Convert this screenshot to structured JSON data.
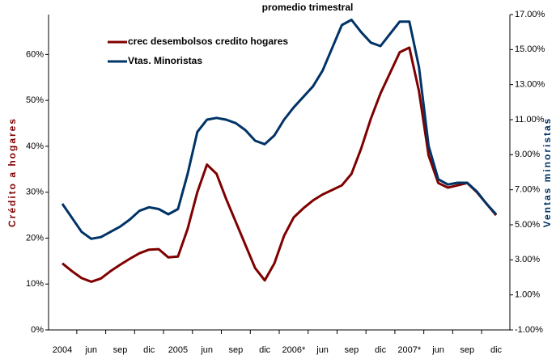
{
  "chart_data": {
    "type": "line",
    "subtitle": "promedio trimestral",
    "ylabel": "Crédito a hogares",
    "y2label": "Ventas minoristas",
    "categories": [
      "2004",
      null,
      null,
      "jun",
      null,
      null,
      "sep",
      null,
      null,
      "dic",
      null,
      null,
      "2005",
      null,
      null,
      "jun",
      null,
      null,
      "sep",
      null,
      null,
      "dic",
      null,
      null,
      "2006*",
      null,
      null,
      "jun",
      null,
      null,
      "sep",
      null,
      null,
      "dic",
      null,
      null,
      "2007*",
      null,
      null,
      "jun",
      null,
      null,
      "sep",
      null,
      null,
      "dic"
    ],
    "series": [
      {
        "name": "crec desembolsos credito hogares",
        "color": "#800000",
        "values": [
          14.5,
          12.8,
          11.3,
          10.5,
          11.2,
          12.8,
          14.2,
          15.5,
          16.7,
          17.5,
          17.6,
          15.8,
          16,
          22,
          30,
          36,
          34,
          28.5,
          23.5,
          18.5,
          13.5,
          10.8,
          14.5,
          20.5,
          24.5,
          26.5,
          28.2,
          29.5,
          30.5,
          31.5,
          34,
          39.5,
          46,
          51.5,
          56,
          60.5,
          61.5,
          52,
          38,
          32,
          31,
          31.5,
          32,
          30,
          27.5,
          25
        ]
      },
      {
        "name": "Vtas. Minoristas",
        "color": "#003366",
        "axis": "y2",
        "values": [
          6.2,
          5.4,
          4.6,
          4.2,
          4.3,
          4.6,
          4.9,
          5.3,
          5.8,
          6.0,
          5.9,
          5.6,
          5.9,
          7.9,
          10.3,
          11.0,
          11.1,
          11.0,
          10.8,
          10.4,
          9.8,
          9.6,
          10.1,
          11.0,
          11.7,
          12.3,
          12.9,
          13.8,
          15.1,
          16.4,
          16.7,
          16.0,
          15.4,
          15.2,
          15.9,
          16.6,
          16.6,
          14.0,
          9.5,
          7.6,
          7.3,
          7.4,
          7.4,
          6.9,
          6.2,
          5.6
        ]
      }
    ],
    "ylim": [
      0,
      68.7
    ],
    "yticks": [
      {
        "value": 0,
        "label": "0%"
      },
      {
        "value": 10,
        "label": "10%"
      },
      {
        "value": 20,
        "label": "20%"
      },
      {
        "value": 30,
        "label": "30%"
      },
      {
        "value": 40,
        "label": "40%"
      },
      {
        "value": 50,
        "label": "50%"
      },
      {
        "value": 60,
        "label": "60%"
      }
    ],
    "y2lim": [
      -1,
      17
    ],
    "y2ticks": [
      {
        "value": -1,
        "label": "-1.00%"
      },
      {
        "value": 1,
        "label": "1.00%"
      },
      {
        "value": 3,
        "label": "3.00%"
      },
      {
        "value": 5,
        "label": "5.00%"
      },
      {
        "value": 7,
        "label": "7.00%"
      },
      {
        "value": 9,
        "label": "9.00%"
      },
      {
        "value": 11,
        "label": "11.00%"
      },
      {
        "value": 13,
        "label": "13.00%"
      },
      {
        "value": 15,
        "label": "15.00%"
      },
      {
        "value": 17,
        "label": "17.00%"
      }
    ],
    "grid": false,
    "legend": "upper left"
  }
}
